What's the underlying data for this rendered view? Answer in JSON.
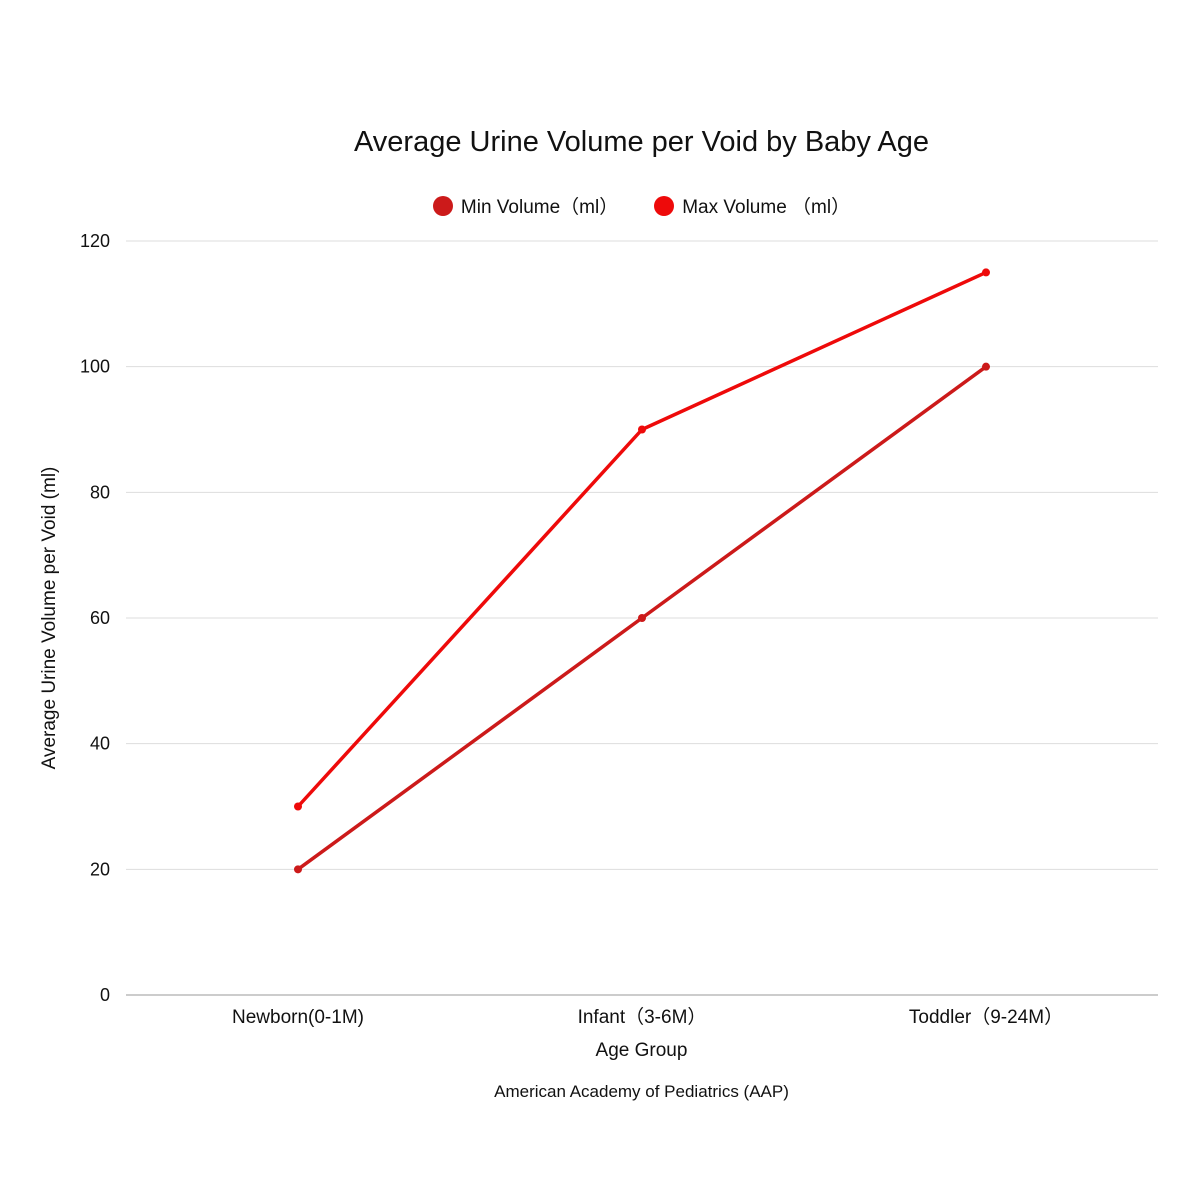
{
  "chart_data": {
    "type": "line",
    "title": "Average Urine Volume per Void by Baby Age",
    "xlabel": "Age Group",
    "ylabel": "Average Urine Volume per Void (ml)",
    "source": "American Academy of Pediatrics (AAP)",
    "categories": [
      "Newborn(0-1M)",
      "Infant（3-6M）",
      "Toddler（9-24M）"
    ],
    "series": [
      {
        "name": "Min Volume（ml）",
        "values": [
          20,
          60,
          100
        ],
        "color": "#cc1a1a"
      },
      {
        "name": "Max Volume （ml）",
        "values": [
          30,
          90,
          115
        ],
        "color": "#ee0a0a"
      }
    ],
    "ylim": [
      0,
      120
    ],
    "yticks": [
      0,
      20,
      40,
      60,
      80,
      100,
      120
    ],
    "grid": true,
    "legend_position": "top"
  }
}
